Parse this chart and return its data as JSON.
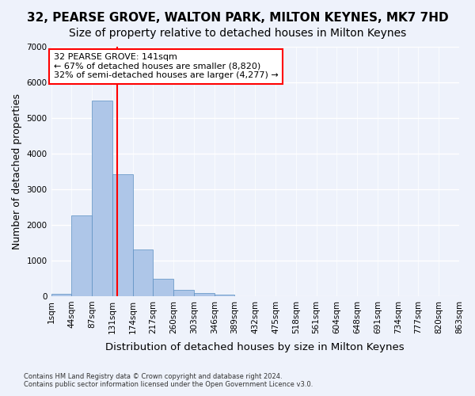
{
  "title_line1": "32, PEARSE GROVE, WALTON PARK, MILTON KEYNES, MK7 7HD",
  "title_line2": "Size of property relative to detached houses in Milton Keynes",
  "xlabel": "Distribution of detached houses by size in Milton Keynes",
  "ylabel": "Number of detached properties",
  "footnote": "Contains HM Land Registry data © Crown copyright and database right 2024.\nContains public sector information licensed under the Open Government Licence v3.0.",
  "bin_labels": [
    "1sqm",
    "44sqm",
    "87sqm",
    "131sqm",
    "174sqm",
    "217sqm",
    "260sqm",
    "303sqm",
    "346sqm",
    "389sqm",
    "432sqm",
    "475sqm",
    "518sqm",
    "561sqm",
    "604sqm",
    "648sqm",
    "691sqm",
    "734sqm",
    "777sqm",
    "820sqm",
    "863sqm"
  ],
  "bar_values": [
    75,
    2270,
    5480,
    3430,
    1300,
    480,
    185,
    95,
    50,
    0,
    0,
    0,
    0,
    0,
    0,
    0,
    0,
    0,
    0,
    0
  ],
  "bar_color": "#aec6e8",
  "bar_edge_color": "#5a8fc2",
  "vline_color": "red",
  "annotation_text": "32 PEARSE GROVE: 141sqm\n← 67% of detached houses are smaller (8,820)\n32% of semi-detached houses are larger (4,277) →",
  "annotation_box_color": "white",
  "annotation_box_edge_color": "red",
  "ylim": [
    0,
    7000
  ],
  "yticks": [
    0,
    1000,
    2000,
    3000,
    4000,
    5000,
    6000,
    7000
  ],
  "background_color": "#eef2fb",
  "plot_background_color": "#eef2fb",
  "grid_color": "white",
  "title_fontsize": 11,
  "subtitle_fontsize": 10,
  "axis_label_fontsize": 9,
  "tick_fontsize": 7.5
}
